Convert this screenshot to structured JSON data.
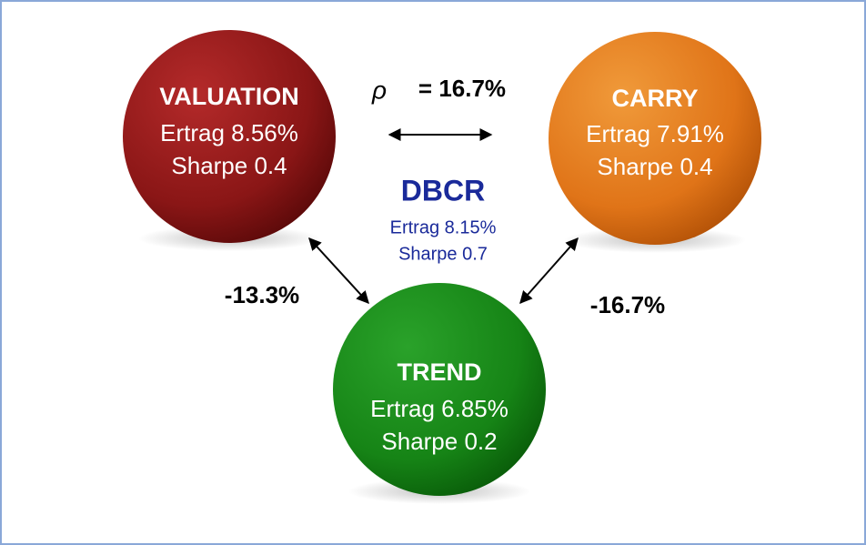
{
  "nodes": [
    {
      "title": "VALUATION",
      "line1": "Ertrag 8.56%",
      "line2": "Sharpe 0.4"
    },
    {
      "title": "CARRY",
      "line1": "Ertrag 7.91%",
      "line2": "Sharpe 0.4"
    },
    {
      "title": "TREND",
      "line1": "Ertrag 6.85%",
      "line2": "Sharpe 0.2"
    }
  ],
  "center": {
    "title": "DBCR",
    "line1": "Ertrag 8.15%",
    "line2": "Sharpe 0.7"
  },
  "correlations": {
    "symbol": "ρ",
    "top": "= 16.7%",
    "left": "-13.3%",
    "right": "-16.7%"
  }
}
